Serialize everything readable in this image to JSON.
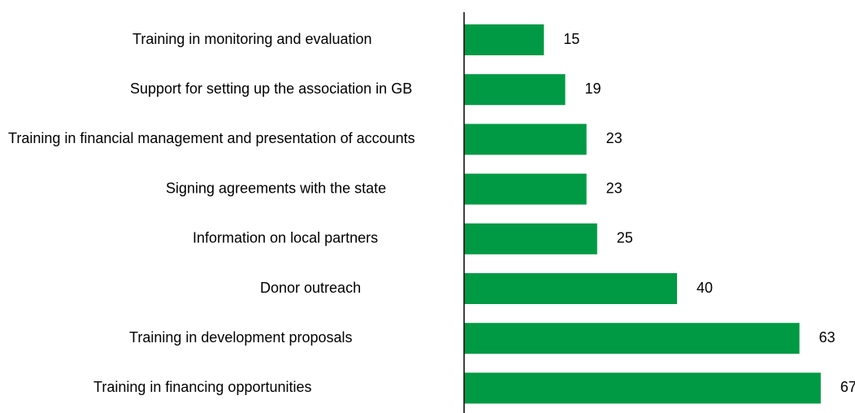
{
  "chart_data": {
    "type": "bar",
    "orientation": "horizontal",
    "categories": [
      "Training in monitoring and evaluation",
      "Support for setting up the association in GB",
      "Training in financial management and presentation of accounts",
      "Signing agreements with the state",
      "Information on local partners",
      "Donor outreach",
      "Training in development proposals",
      "Training in financing opportunities"
    ],
    "values": [
      15,
      19,
      23,
      23,
      25,
      40,
      63,
      67
    ],
    "color": "#009a44"
  }
}
